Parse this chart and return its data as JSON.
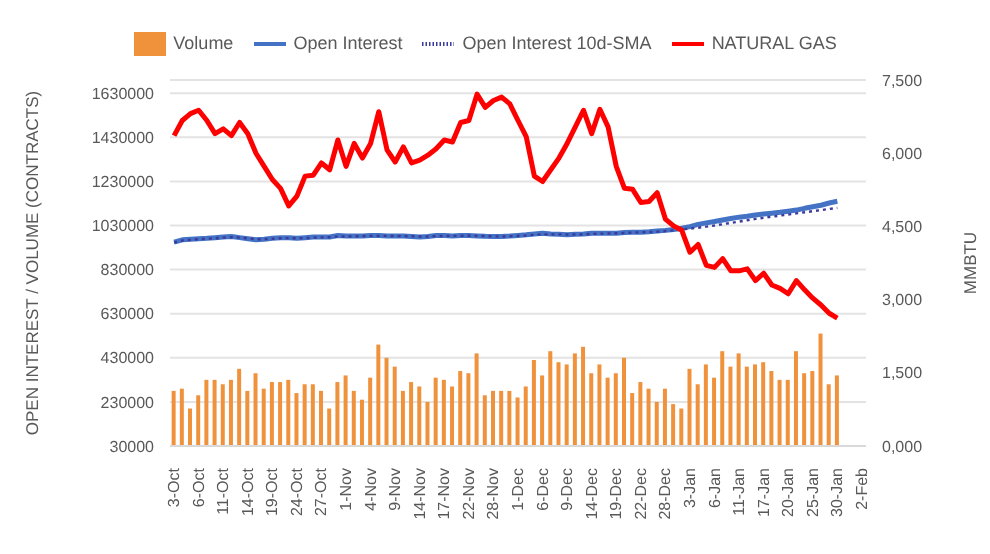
{
  "chart_data": {
    "type": "bar",
    "categories": [
      "3-Oct",
      null,
      null,
      "6-Oct",
      null,
      null,
      "11-Oct",
      null,
      null,
      "14-Oct",
      null,
      null,
      "19-Oct",
      null,
      null,
      "24-Oct",
      null,
      null,
      "27-Oct",
      null,
      null,
      "1-Nov",
      null,
      null,
      "4-Nov",
      null,
      null,
      "9-Nov",
      null,
      null,
      "14-Nov",
      null,
      null,
      "17-Nov",
      null,
      null,
      "22-Nov",
      null,
      null,
      "28-Nov",
      null,
      null,
      "1-Dec",
      null,
      null,
      "6-Dec",
      null,
      null,
      "9-Dec",
      null,
      null,
      "14-Dec",
      null,
      null,
      "19-Dec",
      null,
      null,
      "22-Dec",
      null,
      null,
      "28-Dec",
      null,
      null,
      "3-Jan",
      null,
      null,
      "6-Jan",
      null,
      null,
      "11-Jan",
      null,
      null,
      "17-Jan",
      null,
      null,
      "20-Jan",
      null,
      null,
      "25-Jan",
      null,
      null,
      "30-Jan",
      null,
      null,
      "2-Feb"
    ],
    "series": [
      {
        "name": "Volume",
        "color": "#f0913c",
        "values": [
          280000,
          290000,
          200000,
          260000,
          330000,
          330000,
          310000,
          330000,
          380000,
          280000,
          360000,
          290000,
          320000,
          320000,
          330000,
          270000,
          310000,
          310000,
          280000,
          200000,
          320000,
          350000,
          280000,
          240000,
          340000,
          490000,
          430000,
          390000,
          280000,
          320000,
          300000,
          230000,
          340000,
          330000,
          300000,
          370000,
          360000,
          450000,
          260000,
          280000,
          280000,
          280000,
          250000,
          300000,
          420000,
          350000,
          460000,
          410000,
          400000,
          450000,
          480000,
          360000,
          400000,
          340000,
          360000,
          430000,
          270000,
          320000,
          290000,
          230000,
          290000,
          220000,
          200000,
          380000,
          310000,
          400000,
          340000,
          460000,
          390000,
          450000,
          390000,
          400000,
          410000,
          370000,
          330000,
          330000,
          460000,
          360000,
          370000,
          540000,
          310000,
          350000,
          null,
          null,
          null
        ]
      },
      {
        "name": "Open Interest",
        "type": "line",
        "color": "#4472c4",
        "line_style": "solid",
        "values": [
          955000,
          965000,
          968000,
          970000,
          972000,
          975000,
          978000,
          980000,
          975000,
          970000,
          965000,
          968000,
          972000,
          975000,
          975000,
          972000,
          975000,
          978000,
          978000,
          978000,
          985000,
          982000,
          982000,
          983000,
          985000,
          985000,
          983000,
          982000,
          982000,
          980000,
          978000,
          980000,
          985000,
          985000,
          983000,
          985000,
          985000,
          983000,
          981000,
          980000,
          980000,
          982000,
          985000,
          988000,
          992000,
          995000,
          992000,
          990000,
          988000,
          990000,
          992000,
          995000,
          995000,
          995000,
          995000,
          998000,
          1000000,
          1000000,
          1002000,
          1005000,
          1008000,
          1012000,
          1018000,
          1025000,
          1035000,
          1042000,
          1048000,
          1055000,
          1062000,
          1068000,
          1072000,
          1078000,
          1082000,
          1086000,
          1090000,
          1095000,
          1100000,
          1108000,
          1115000,
          1122000,
          1132000,
          1140000,
          null,
          null,
          null
        ]
      },
      {
        "name": "Open Interest 10d-SMA",
        "type": "line",
        "color": "#3b3b9e",
        "line_style": "dotted",
        "values": [
          953000,
          962000,
          965000,
          968000,
          970000,
          972000,
          975000,
          977000,
          975000,
          972000,
          968000,
          968000,
          970000,
          972000,
          973000,
          972000,
          973000,
          975000,
          976000,
          977000,
          980000,
          980000,
          981000,
          982000,
          983000,
          983000,
          983000,
          982000,
          982000,
          981000,
          980000,
          980000,
          982000,
          983000,
          983000,
          983000,
          984000,
          983000,
          982000,
          981000,
          980000,
          981000,
          983000,
          985000,
          988000,
          990000,
          990000,
          990000,
          989000,
          989000,
          990000,
          992000,
          993000,
          994000,
          995000,
          996000,
          998000,
          999000,
          1000000,
          1002000,
          1005000,
          1008000,
          1012000,
          1016000,
          1020000,
          1025000,
          1030000,
          1036000,
          1042000,
          1048000,
          1054000,
          1060000,
          1065000,
          1070000,
          1075000,
          1080000,
          1085000,
          1090000,
          1095000,
          1100000,
          1105000,
          1110000,
          null,
          null,
          null
        ]
      },
      {
        "name": "NATURAL GAS",
        "type": "line",
        "axis": "y2",
        "color": "#ff0000",
        "line_style": "solid",
        "values": [
          6360,
          6670,
          6810,
          6880,
          6670,
          6400,
          6500,
          6360,
          6630,
          6400,
          6000,
          5730,
          5460,
          5280,
          4920,
          5120,
          5530,
          5550,
          5800,
          5660,
          6270,
          5730,
          6200,
          5900,
          6200,
          6850,
          6070,
          5820,
          6130,
          5800,
          5860,
          5960,
          6090,
          6270,
          6230,
          6630,
          6670,
          7210,
          6940,
          7080,
          7150,
          7010,
          6670,
          6340,
          5530,
          5420,
          5660,
          5900,
          6200,
          6540,
          6880,
          6400,
          6900,
          6540,
          5730,
          5280,
          5260,
          4990,
          5010,
          5190,
          4650,
          4510,
          4420,
          3970,
          4130,
          3700,
          3660,
          3840,
          3590,
          3590,
          3630,
          3390,
          3540,
          3300,
          3230,
          3120,
          3390,
          3200,
          3030,
          2890,
          2720,
          2620,
          null,
          null,
          null
        ]
      }
    ],
    "ylabel": "OPEN INTEREST / VOLUME (CONTRACTS)",
    "y2label": "MMBTU",
    "ylim": [
      30000,
      1690000
    ],
    "yticks": [
      30000,
      230000,
      430000,
      630000,
      830000,
      1030000,
      1230000,
      1430000,
      1630000
    ],
    "y2lim": [
      0,
      7500
    ],
    "y2ticks": [
      {
        "value": 0,
        "label": "0,000"
      },
      {
        "value": 1500,
        "label": "1,500"
      },
      {
        "value": 3000,
        "label": "3,000"
      },
      {
        "value": 4500,
        "label": "4,500"
      },
      {
        "value": 6000,
        "label": "6,000"
      },
      {
        "value": 7500,
        "label": "7,500"
      }
    ],
    "grid": "y",
    "legend": "top",
    "marker": "none"
  }
}
